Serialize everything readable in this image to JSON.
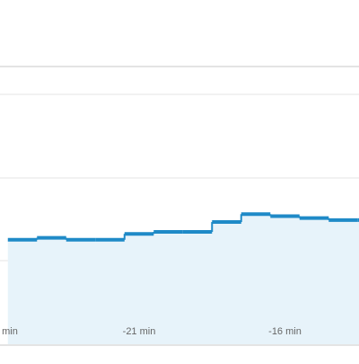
{
  "chart_data": {
    "type": "area",
    "step": true,
    "x": [
      -25,
      -24,
      -23,
      -22,
      -21,
      -20,
      -19,
      -18,
      -17,
      -16,
      -15,
      -14,
      -13
    ],
    "values": [
      26.5,
      27,
      26.5,
      26.5,
      28,
      28.5,
      28.5,
      31,
      33,
      32.5,
      32,
      31.5,
      31.5
    ],
    "xticks": [
      {
        "value": -21,
        "label": "-21 min"
      },
      {
        "value": -16,
        "label": "-16 min"
      }
    ],
    "xtick_fragment": "min",
    "ylim": [
      0,
      70
    ],
    "grid": true,
    "line_color": "#1f8ac7",
    "fill_color": "#e7f3fa",
    "grid_color": "#e6e6e6",
    "frame_color": "#c8c8c8"
  }
}
